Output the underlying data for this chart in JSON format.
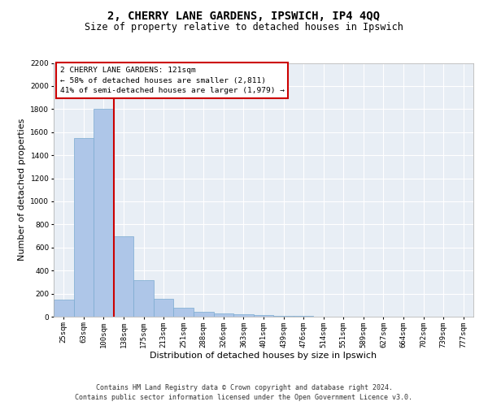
{
  "title": "2, CHERRY LANE GARDENS, IPSWICH, IP4 4QQ",
  "subtitle": "Size of property relative to detached houses in Ipswich",
  "xlabel": "Distribution of detached houses by size in Ipswich",
  "ylabel": "Number of detached properties",
  "categories": [
    "25sqm",
    "63sqm",
    "100sqm",
    "138sqm",
    "175sqm",
    "213sqm",
    "251sqm",
    "288sqm",
    "326sqm",
    "363sqm",
    "401sqm",
    "439sqm",
    "476sqm",
    "514sqm",
    "551sqm",
    "589sqm",
    "627sqm",
    "664sqm",
    "702sqm",
    "739sqm",
    "777sqm"
  ],
  "values": [
    150,
    1550,
    1800,
    695,
    320,
    155,
    80,
    45,
    28,
    20,
    12,
    8,
    5,
    2,
    1,
    1,
    0,
    0,
    0,
    0,
    0
  ],
  "bar_color": "#aec6e8",
  "bar_edge_color": "#7aaad0",
  "vline_x_index": 2.5,
  "vline_color": "#cc0000",
  "annotation_text": "2 CHERRY LANE GARDENS: 121sqm\n← 58% of detached houses are smaller (2,811)\n41% of semi-detached houses are larger (1,979) →",
  "annotation_box_color": "#ffffff",
  "annotation_box_edge": "#cc0000",
  "ylim": [
    0,
    2200
  ],
  "yticks": [
    0,
    200,
    400,
    600,
    800,
    1000,
    1200,
    1400,
    1600,
    1800,
    2000,
    2200
  ],
  "footer1": "Contains HM Land Registry data © Crown copyright and database right 2024.",
  "footer2": "Contains public sector information licensed under the Open Government Licence v3.0.",
  "bg_color": "#ffffff",
  "plot_bg_color": "#e8eef5",
  "grid_color": "#ffffff",
  "title_fontsize": 10,
  "subtitle_fontsize": 8.5,
  "ylabel_fontsize": 8,
  "xlabel_fontsize": 8,
  "tick_fontsize": 6.5,
  "annotation_fontsize": 6.8,
  "footer_fontsize": 6
}
